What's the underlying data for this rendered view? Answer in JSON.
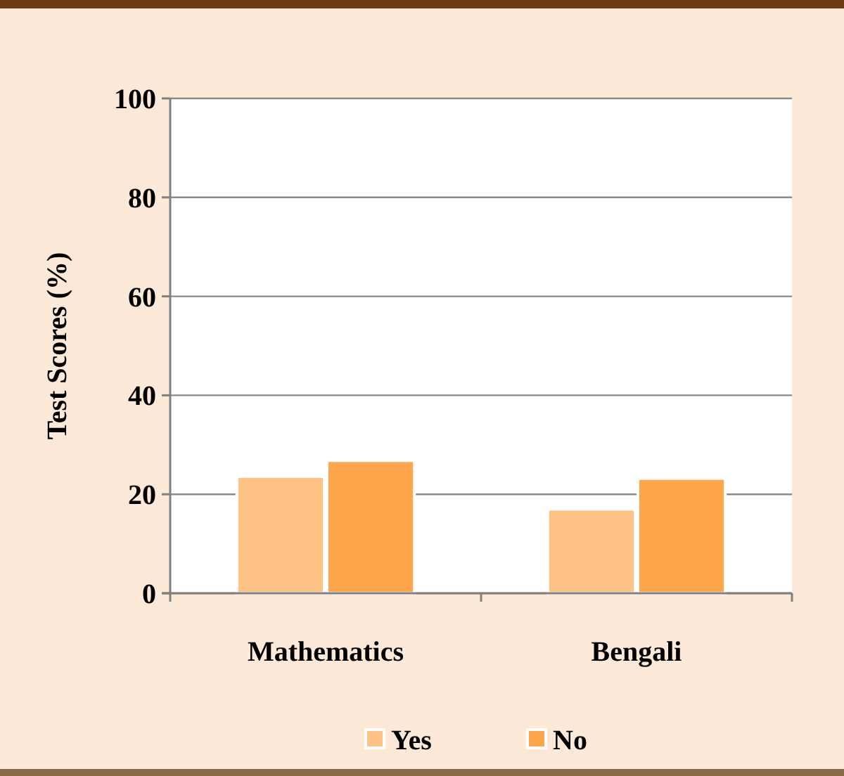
{
  "chart_data": {
    "type": "bar",
    "categories": [
      "Mathematics",
      "Bengali"
    ],
    "series": [
      {
        "name": "Yes",
        "color": "#ffc285",
        "values": [
          23.6,
          17.0
        ]
      },
      {
        "name": "No",
        "color": "#ffa64d",
        "values": [
          26.8,
          23.2
        ]
      }
    ],
    "ylabel": "Test Scores (%)",
    "ylim": [
      0,
      100
    ],
    "yticks": [
      0,
      20,
      40,
      60,
      80,
      100
    ],
    "grid": "y",
    "legend": "bottom"
  }
}
